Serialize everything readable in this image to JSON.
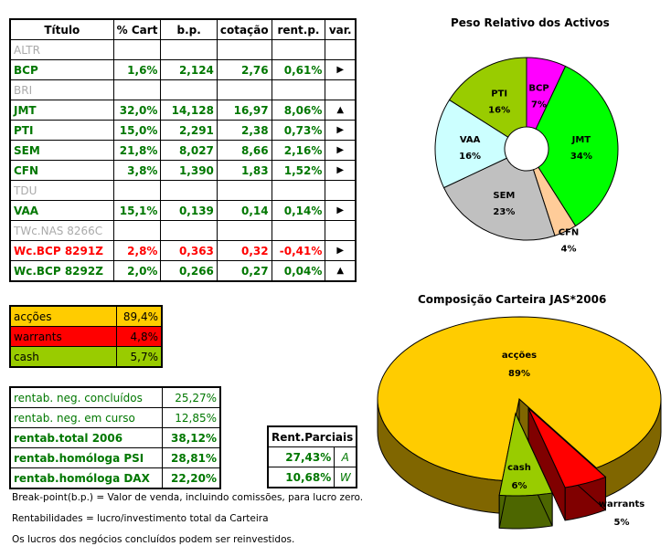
{
  "holdings": {
    "headers": [
      "Título",
      "% Cart",
      "b.p.",
      "cotação",
      "rent.p.",
      "var."
    ],
    "rows": [
      {
        "titulo": "ALTR",
        "style": "gray",
        "cart": "",
        "bp": "",
        "cot": "",
        "rent": "",
        "var": ""
      },
      {
        "titulo": "BCP",
        "style": "g",
        "cart": "1,6%",
        "bp": "2,124",
        "cot": "2,76",
        "rent": "0,61%",
        "var": "▶"
      },
      {
        "titulo": "BRI",
        "style": "gray",
        "cart": "",
        "bp": "",
        "cot": "",
        "rent": "",
        "var": ""
      },
      {
        "titulo": "JMT",
        "style": "g",
        "cart": "32,0%",
        "bp": "14,128",
        "cot": "16,97",
        "rent": "8,06%",
        "var": "▲"
      },
      {
        "titulo": "PTI",
        "style": "g",
        "cart": "15,0%",
        "bp": "2,291",
        "cot": "2,38",
        "rent": "0,73%",
        "var": "▶"
      },
      {
        "titulo": "SEM",
        "style": "g",
        "cart": "21,8%",
        "bp": "8,027",
        "cot": "8,66",
        "rent": "2,16%",
        "var": "▶"
      },
      {
        "titulo": "CFN",
        "style": "g",
        "cart": "3,8%",
        "bp": "1,390",
        "cot": "1,83",
        "rent": "1,52%",
        "var": "▶"
      },
      {
        "titulo": "TDU",
        "style": "gray",
        "cart": "",
        "bp": "",
        "cot": "",
        "rent": "",
        "var": ""
      },
      {
        "titulo": "VAA",
        "style": "g",
        "cart": "15,1%",
        "bp": "0,139",
        "cot": "0,14",
        "rent": "0,14%",
        "var": "▶"
      },
      {
        "titulo": "TWc.NAS 8266C",
        "style": "gray",
        "cart": "",
        "bp": "",
        "cot": "",
        "rent": "",
        "var": ""
      },
      {
        "titulo": "Wc.BCP 8291Z",
        "style": "r",
        "cart": "2,8%",
        "bp": "0,363",
        "cot": "0,32",
        "rent": "-0,41%",
        "var": "▶"
      },
      {
        "titulo": "Wc.BCP 8292Z",
        "style": "g",
        "cart": "2,0%",
        "bp": "0,266",
        "cot": "0,27",
        "rent": "0,04%",
        "var": "▲"
      }
    ]
  },
  "allocation": [
    {
      "label": "acções",
      "value": "89,4%",
      "color": "#ffcc00"
    },
    {
      "label": "warrants",
      "value": "4,8%",
      "color": "#ff0000"
    },
    {
      "label": "cash",
      "value": "5,7%",
      "color": "#99cc00"
    }
  ],
  "returns": [
    {
      "label": "rentab. neg. concluídos",
      "value": "25,27%",
      "bold": false
    },
    {
      "label": "rentab. neg. em curso",
      "value": "12,85%",
      "bold": false
    },
    {
      "label": "rentab.total 2006",
      "value": "38,12%",
      "bold": true
    },
    {
      "label": "rentab.homóloga PSI",
      "value": "28,81%",
      "bold": true
    },
    {
      "label": "rentab.homóloga DAX",
      "value": "22,20%",
      "bold": true
    }
  ],
  "partial": {
    "title": "Rent.Parciais",
    "rows": [
      {
        "value": "27,43%",
        "tag": "A"
      },
      {
        "value": "10,68%",
        "tag": "W"
      }
    ]
  },
  "notes": [
    "Break-point(b.p.) = Valor de venda, incluindo comissões, para lucro zero.",
    "Rentabilidades = lucro/investimento total da Carteira",
    "Os lucros dos negócios concluídos podem ser reinvestidos."
  ],
  "chart_data": [
    {
      "type": "pie",
      "variant": "donut",
      "title": "Peso Relativo dos Activos",
      "categories": [
        "BCP",
        "JMT",
        "CFN",
        "SEM",
        "VAA",
        "PTI"
      ],
      "values": [
        7,
        34,
        4,
        23,
        16,
        16
      ],
      "labels": [
        "7%",
        "34%",
        "4%",
        "23%",
        "16%",
        "16%"
      ],
      "colors": [
        "#ff00ff",
        "#00ff00",
        "#ffcc99",
        "#c0c0c0",
        "#ccffff",
        "#99cc00"
      ]
    },
    {
      "type": "pie",
      "variant": "3d-exploded",
      "title": "Composição Carteira JAS*2006",
      "categories": [
        "acções",
        "warrants",
        "cash"
      ],
      "values": [
        89,
        5,
        6
      ],
      "labels": [
        "89%",
        "5%",
        "6%"
      ],
      "colors": [
        "#ffcc00",
        "#ff0000",
        "#99cc00"
      ]
    }
  ]
}
